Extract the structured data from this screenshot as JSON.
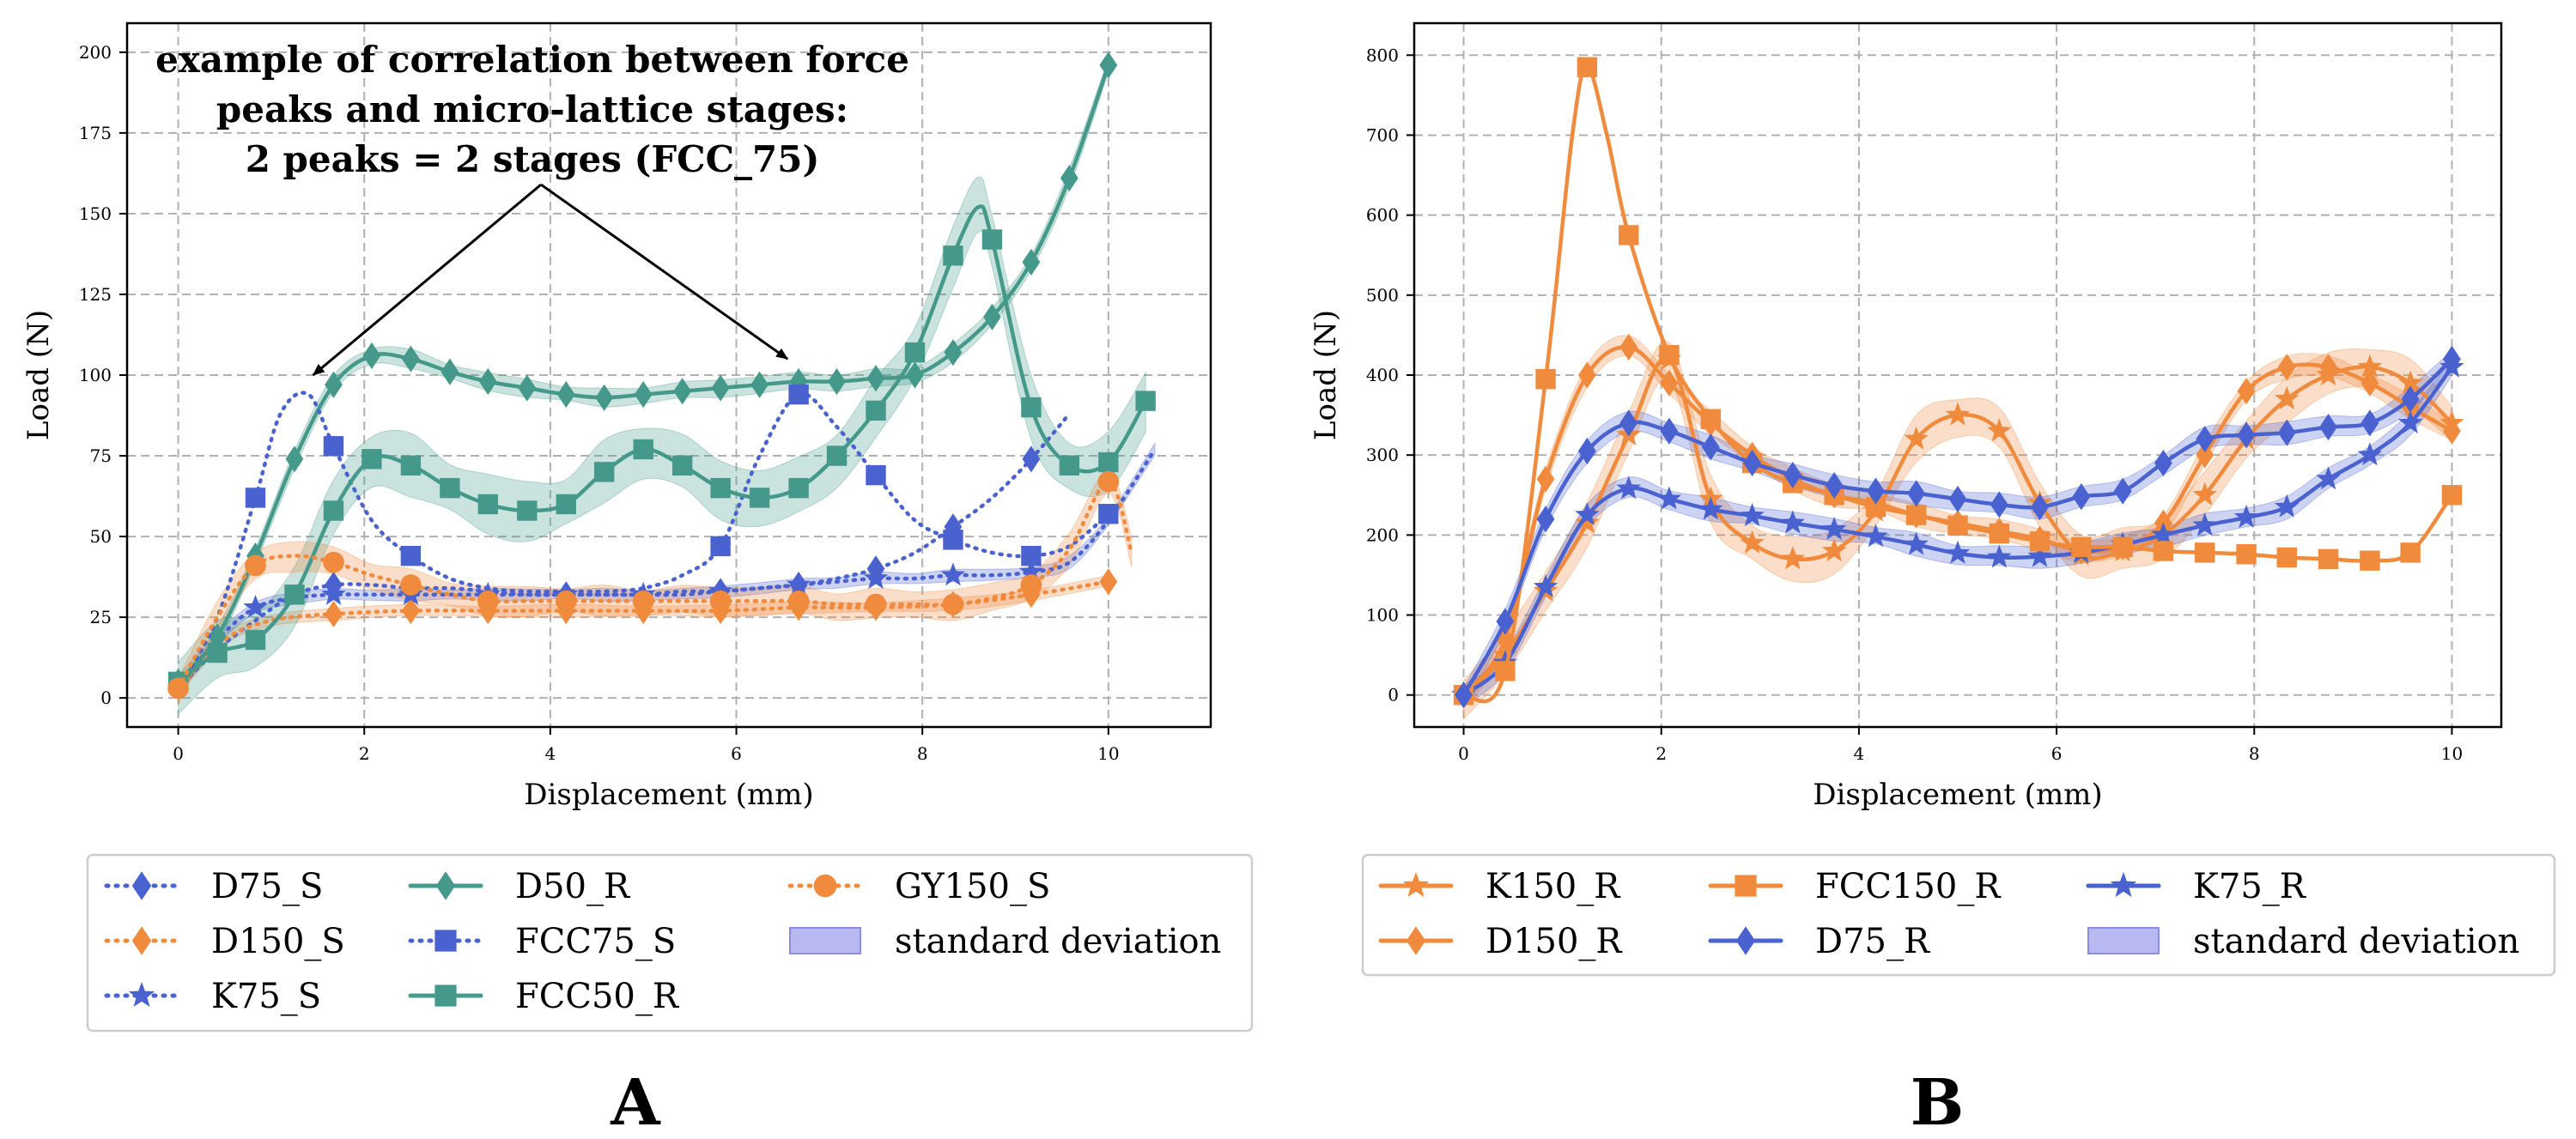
{
  "colors": {
    "blue": "#4a62d0",
    "orange": "#f08a3c",
    "teal": "#45998a",
    "std_fill": "#b9b9f2",
    "std_edge": "#8c8ce6",
    "grid": "#b0b0b0"
  },
  "chart_data": [
    {
      "type": "line",
      "panel_label": "A",
      "xlabel": "Displacement (mm)",
      "ylabel": "Load (N)",
      "xlim": [
        -0.55,
        11.1
      ],
      "ylim": [
        -9,
        209
      ],
      "xticks": [
        0,
        2,
        4,
        6,
        8,
        10
      ],
      "yticks": [
        0,
        25,
        50,
        75,
        100,
        125,
        150,
        175,
        200
      ],
      "grid": true,
      "annotation": {
        "lines": [
          "example of correlation between force",
          "peaks and micro-lattice stages:",
          "2 peaks = 2 stages (FCC_75)"
        ],
        "arrow_tail": [
          3.9,
          159
        ],
        "arrow_heads": [
          [
            1.45,
            100
          ],
          [
            6.55,
            105
          ]
        ]
      },
      "series": [
        {
          "name": "D75_S",
          "color": "blue",
          "dash": "dotted",
          "marker": "diamond",
          "band": 0,
          "x": [
            0,
            0.42,
            0.83,
            1.25,
            1.67,
            2.08,
            2.5,
            2.92,
            3.33,
            3.75,
            4.17,
            4.58,
            5.0,
            5.42,
            5.83,
            6.25,
            6.67,
            7.08,
            7.5,
            7.92,
            8.33,
            8.75,
            9.17,
            9.58
          ],
          "y": [
            3,
            15,
            24,
            32,
            35,
            35,
            34,
            34,
            33,
            32,
            32,
            32,
            32,
            33,
            33,
            34,
            35,
            37,
            40,
            45,
            53,
            62,
            74,
            88
          ],
          "markers_at": [
            1.67,
            4.17,
            5.83,
            6.67,
            7.5,
            8.33,
            9.17
          ]
        },
        {
          "name": "D150_S",
          "color": "orange",
          "dash": "dotted",
          "marker": "diamond",
          "band": 2,
          "x": [
            0,
            0.5,
            1.0,
            1.67,
            2.5,
            3.33,
            4.17,
            5.0,
            5.83,
            6.67,
            7.5,
            8.33,
            9.17,
            10.0
          ],
          "y": [
            3,
            18,
            24,
            26,
            27,
            27,
            27,
            27,
            27,
            28,
            28,
            29,
            32,
            36
          ],
          "markers_at": [
            1.67,
            2.5,
            3.33,
            4.17,
            5.0,
            5.83,
            6.67,
            7.5,
            8.33,
            9.17,
            10.0
          ]
        },
        {
          "name": "K75_S",
          "color": "blue",
          "dash": "dotted",
          "marker": "star",
          "band": 2,
          "x": [
            0,
            0.42,
            0.83,
            1.25,
            1.67,
            2.08,
            2.5,
            2.92,
            3.33,
            3.75,
            4.17,
            4.58,
            5.0,
            5.42,
            5.83,
            6.25,
            6.67,
            7.08,
            7.5,
            7.92,
            8.33,
            8.75,
            9.17,
            9.58,
            10.0,
            10.5
          ],
          "y": [
            3,
            18,
            28,
            31,
            32,
            32,
            32,
            32,
            32,
            32,
            32,
            32,
            32,
            32,
            33,
            34,
            35,
            36,
            37,
            37,
            38,
            38,
            39,
            42,
            55,
            77
          ],
          "markers_at": [
            0.83,
            1.67,
            2.5,
            3.33,
            4.17,
            5.0,
            5.83,
            6.67,
            7.5,
            8.33,
            9.17
          ]
        },
        {
          "name": "D50_R",
          "color": "teal",
          "dash": "solid",
          "marker": "diamond",
          "band": 3,
          "x": [
            0,
            0.42,
            0.83,
            1.25,
            1.67,
            2.08,
            2.5,
            2.92,
            3.33,
            3.75,
            4.17,
            4.58,
            5.0,
            5.42,
            5.83,
            6.25,
            6.67,
            7.08,
            7.5,
            7.92,
            8.33,
            8.75,
            9.17,
            9.58,
            10.0
          ],
          "y": [
            5,
            19,
            44,
            74,
            97,
            106,
            105,
            101,
            98,
            96,
            94,
            93,
            94,
            95,
            96,
            97,
            98,
            98,
            99,
            100,
            107,
            118,
            135,
            161,
            196
          ],
          "markers_at": [
            0,
            0.42,
            0.83,
            1.25,
            1.67,
            2.08,
            2.5,
            2.92,
            3.33,
            3.75,
            4.17,
            4.58,
            5.0,
            5.42,
            5.83,
            6.25,
            6.67,
            7.08,
            7.5,
            7.92,
            8.33,
            8.75,
            9.17,
            9.58,
            10.0
          ]
        },
        {
          "name": "FCC75_S",
          "color": "blue",
          "dash": "dotted",
          "marker": "square",
          "band": 0,
          "x": [
            0,
            0.42,
            0.83,
            1.1,
            1.4,
            1.67,
            2.08,
            2.5,
            2.92,
            3.33,
            3.75,
            4.17,
            4.58,
            5.0,
            5.42,
            5.83,
            6.25,
            6.67,
            7.08,
            7.5,
            7.92,
            8.33,
            8.75,
            9.17,
            9.58,
            10.0
          ],
          "y": [
            3,
            25,
            62,
            88,
            94,
            78,
            55,
            44,
            37,
            34,
            33,
            33,
            33,
            34,
            38,
            47,
            75,
            94,
            84,
            69,
            55,
            49,
            45,
            44,
            47,
            57
          ],
          "markers_at": [
            0.83,
            1.67,
            2.5,
            5.83,
            6.67,
            7.5,
            8.33,
            9.17,
            10.0
          ]
        },
        {
          "name": "FCC50_R",
          "color": "teal",
          "dash": "solid",
          "marker": "square",
          "band": 10,
          "x": [
            0,
            0.42,
            0.83,
            1.25,
            1.67,
            2.08,
            2.5,
            2.92,
            3.33,
            3.75,
            4.17,
            4.58,
            5.0,
            5.42,
            5.83,
            6.25,
            6.67,
            7.08,
            7.5,
            7.92,
            8.33,
            8.6,
            8.75,
            9.17,
            9.58,
            10.0,
            10.4
          ],
          "y": [
            5,
            14,
            18,
            32,
            58,
            74,
            72,
            65,
            60,
            58,
            60,
            70,
            77,
            72,
            65,
            62,
            65,
            75,
            89,
            107,
            137,
            152,
            142,
            90,
            72,
            73,
            92
          ],
          "markers_at": [
            0,
            0.42,
            0.83,
            1.25,
            1.67,
            2.08,
            2.5,
            2.92,
            3.33,
            3.75,
            4.17,
            4.58,
            5.0,
            5.42,
            5.83,
            6.25,
            6.67,
            7.08,
            7.5,
            7.92,
            8.33,
            8.75,
            9.17,
            9.58,
            10.0,
            10.4
          ]
        },
        {
          "name": "GY150_S",
          "color": "orange",
          "dash": "dotted",
          "marker": "circle",
          "band": 5,
          "x": [
            0,
            0.42,
            0.83,
            1.25,
            1.67,
            2.08,
            2.5,
            2.92,
            3.33,
            3.75,
            4.17,
            4.58,
            5.0,
            5.42,
            5.83,
            6.25,
            6.67,
            7.08,
            7.5,
            7.92,
            8.33,
            8.75,
            9.17,
            9.58,
            10.0,
            10.25
          ],
          "y": [
            3,
            25,
            41,
            44,
            42,
            38,
            35,
            32,
            30,
            30,
            30,
            30,
            30,
            30,
            30,
            30,
            30,
            29,
            29,
            29,
            29,
            31,
            35,
            46,
            67,
            45
          ],
          "markers_at": [
            0,
            0.83,
            1.67,
            2.5,
            3.33,
            4.17,
            5.0,
            5.83,
            6.67,
            7.5,
            8.33,
            9.17,
            10.0
          ]
        }
      ],
      "legend": {
        "placement": "below",
        "columns": [
          [
            "D75_S",
            "D150_S",
            "K75_S"
          ],
          [
            "D50_R",
            "FCC75_S",
            "FCC50_R"
          ],
          [
            "GY150_S",
            "standard deviation"
          ]
        ],
        "std_label": "standard deviation"
      }
    },
    {
      "type": "line",
      "panel_label": "B",
      "xlabel": "Displacement (mm)",
      "ylabel": "Load (N)",
      "xlim": [
        -0.5,
        10.5
      ],
      "ylim": [
        -40,
        840
      ],
      "xticks": [
        0,
        2,
        4,
        6,
        8,
        10
      ],
      "yticks": [
        0,
        100,
        200,
        300,
        400,
        500,
        600,
        700,
        800
      ],
      "grid": true,
      "series": [
        {
          "name": "K150_R",
          "color": "orange",
          "dash": "solid",
          "marker": "star",
          "band": 30,
          "x": [
            0,
            0.42,
            0.83,
            1.25,
            1.67,
            2.08,
            2.5,
            2.92,
            3.33,
            3.75,
            4.17,
            4.58,
            5.0,
            5.42,
            5.83,
            6.25,
            6.67,
            7.08,
            7.5,
            7.92,
            8.33,
            8.75,
            9.17,
            9.58,
            10.0
          ],
          "y": [
            0,
            50,
            130,
            215,
            325,
            420,
            245,
            190,
            170,
            180,
            230,
            320,
            350,
            330,
            240,
            175,
            180,
            200,
            250,
            320,
            370,
            400,
            410,
            390,
            340
          ],
          "markers_at": [
            0,
            0.42,
            0.83,
            1.25,
            1.67,
            2.08,
            2.5,
            2.92,
            3.33,
            3.75,
            4.17,
            4.58,
            5.0,
            5.42,
            5.83,
            6.25,
            6.67,
            7.08,
            7.5,
            7.92,
            8.33,
            8.75,
            9.17,
            9.58,
            10.0
          ]
        },
        {
          "name": "D150_R",
          "color": "orange",
          "dash": "solid",
          "marker": "diamond",
          "band": 15,
          "x": [
            0,
            0.42,
            0.83,
            1.25,
            1.67,
            2.08,
            2.5,
            2.92,
            3.33,
            3.75,
            4.17,
            4.58,
            5.0,
            5.42,
            5.83,
            6.25,
            6.67,
            7.08,
            7.5,
            7.92,
            8.33,
            8.75,
            9.17,
            9.58,
            10.0
          ],
          "y": [
            0,
            70,
            270,
            400,
            435,
            390,
            340,
            300,
            270,
            250,
            240,
            225,
            215,
            205,
            195,
            180,
            185,
            215,
            300,
            380,
            410,
            410,
            390,
            360,
            330
          ],
          "markers_at": [
            0,
            0.42,
            0.83,
            1.25,
            1.67,
            2.08,
            2.5,
            2.92,
            3.33,
            3.75,
            4.17,
            4.58,
            5.0,
            5.42,
            5.83,
            6.25,
            6.67,
            7.08,
            7.5,
            7.92,
            8.33,
            8.75,
            9.17,
            9.58,
            10.0
          ]
        },
        {
          "name": "K75_R",
          "color": "blue",
          "dash": "solid",
          "marker": "star",
          "band": 15,
          "x": [
            0,
            0.42,
            0.83,
            1.25,
            1.67,
            2.08,
            2.5,
            2.92,
            3.33,
            3.75,
            4.17,
            4.58,
            5.0,
            5.42,
            5.83,
            6.25,
            6.67,
            7.08,
            7.5,
            7.92,
            8.33,
            8.75,
            9.17,
            9.58,
            10.0
          ],
          "y": [
            0,
            40,
            135,
            225,
            258,
            245,
            232,
            224,
            215,
            207,
            198,
            188,
            177,
            172,
            173,
            178,
            188,
            200,
            212,
            222,
            235,
            270,
            300,
            340,
            410
          ],
          "markers_at": [
            0,
            0.42,
            0.83,
            1.25,
            1.67,
            2.08,
            2.5,
            2.92,
            3.33,
            3.75,
            4.17,
            4.58,
            5.0,
            5.42,
            5.83,
            6.25,
            6.67,
            7.08,
            7.5,
            7.92,
            8.33,
            8.75,
            9.17,
            9.58,
            10.0
          ]
        },
        {
          "name": "FCC150_R",
          "color": "orange",
          "dash": "solid",
          "marker": "square",
          "band": 0,
          "x": [
            0,
            0.42,
            0.83,
            1.1,
            1.25,
            1.45,
            1.67,
            2.08,
            2.5,
            2.92,
            3.33,
            3.75,
            4.17,
            4.58,
            5.0,
            5.42,
            5.83,
            6.25,
            6.67,
            7.08,
            7.5,
            7.92,
            8.33,
            8.75,
            9.17,
            9.58,
            10.0
          ],
          "y": [
            0,
            30,
            395,
            700,
            785,
            700,
            575,
            425,
            345,
            290,
            265,
            250,
            235,
            225,
            212,
            202,
            192,
            185,
            185,
            180,
            178,
            176,
            172,
            170,
            168,
            178,
            250
          ],
          "markers_at": [
            0,
            0.42,
            0.83,
            1.25,
            1.67,
            2.08,
            2.5,
            2.92,
            3.33,
            3.75,
            4.17,
            4.58,
            5.0,
            5.42,
            5.83,
            6.25,
            6.67,
            7.08,
            7.5,
            7.92,
            8.33,
            8.75,
            9.17,
            9.58,
            10.0
          ]
        },
        {
          "name": "D75_R",
          "color": "blue",
          "dash": "solid",
          "marker": "diamond",
          "band": 15,
          "x": [
            0,
            0.42,
            0.83,
            1.25,
            1.67,
            2.08,
            2.5,
            2.92,
            3.33,
            3.75,
            4.17,
            4.58,
            5.0,
            5.42,
            5.83,
            6.25,
            6.67,
            7.08,
            7.5,
            7.92,
            8.33,
            8.75,
            9.17,
            9.58,
            10.0
          ],
          "y": [
            0,
            92,
            220,
            305,
            340,
            330,
            310,
            290,
            275,
            262,
            255,
            252,
            245,
            238,
            235,
            248,
            255,
            290,
            320,
            325,
            328,
            335,
            340,
            370,
            420
          ],
          "markers_at": [
            0,
            0.42,
            0.83,
            1.25,
            1.67,
            2.08,
            2.5,
            2.92,
            3.33,
            3.75,
            4.17,
            4.58,
            5.0,
            5.42,
            5.83,
            6.25,
            6.67,
            7.08,
            7.5,
            7.92,
            8.33,
            8.75,
            9.17,
            9.58,
            10.0
          ]
        }
      ],
      "legend": {
        "placement": "below",
        "columns": [
          [
            "K150_R",
            "D150_R"
          ],
          [
            "FCC150_R",
            "D75_R"
          ],
          [
            "K75_R",
            "standard deviation"
          ]
        ],
        "std_label": "standard deviation"
      }
    }
  ]
}
